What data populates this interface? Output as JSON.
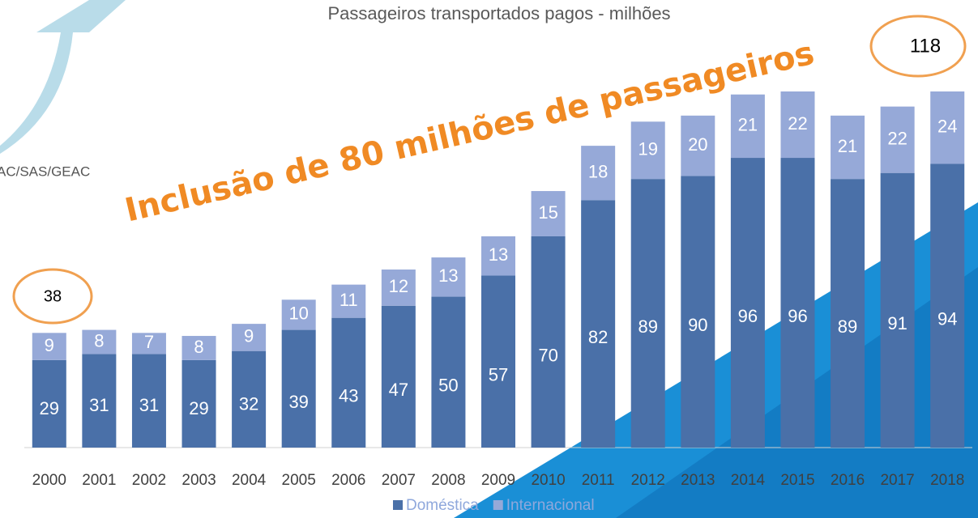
{
  "chart_data": {
    "type": "stacked-bar",
    "title": "Passageiros transportados pagos - milhões",
    "source": "AC/SAS/GEAC",
    "annotations": [
      "Inclusão de 80 milhões de passageiros",
      "38",
      "118"
    ],
    "categories": [
      "2000",
      "2001",
      "2002",
      "2003",
      "2004",
      "2005",
      "2006",
      "2007",
      "2008",
      "2009",
      "2010",
      "2011",
      "2012",
      "2013",
      "2014",
      "2015",
      "2016",
      "2017",
      "2018"
    ],
    "series": [
      {
        "name": "Doméstica",
        "color": "#4a70a8",
        "values": [
          29,
          31,
          31,
          29,
          32,
          39,
          43,
          47,
          50,
          57,
          70,
          82,
          89,
          90,
          96,
          96,
          89,
          91,
          94
        ]
      },
      {
        "name": "Internacional",
        "color": "#96a9d8",
        "values": [
          9,
          8,
          7,
          8,
          9,
          10,
          11,
          12,
          13,
          13,
          15,
          18,
          19,
          20,
          21,
          22,
          21,
          22,
          24
        ]
      }
    ]
  }
}
